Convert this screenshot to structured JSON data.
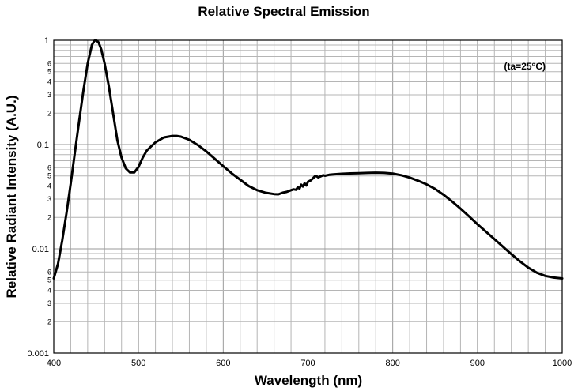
{
  "chart_data": {
    "type": "line",
    "title": "Relative Spectral Emission",
    "xlabel": "Wavelength (nm)",
    "ylabel": "Relative Radiant Intensity (A.U.)",
    "annotation": "(ta=25°C)",
    "yscale": "log",
    "xlim": [
      400,
      1000
    ],
    "ylim": [
      0.001,
      1
    ],
    "x_ticks": [
      400,
      500,
      600,
      700,
      800,
      900,
      1000
    ],
    "x_tick_labels": [
      "400",
      "500",
      "600",
      "700",
      "800",
      "900",
      "1000"
    ],
    "x_minor_ticks": [
      420,
      440,
      460,
      480,
      520,
      540,
      560,
      580,
      620,
      640,
      660,
      680,
      720,
      740,
      760,
      780,
      820,
      840,
      860,
      880,
      920,
      940,
      960,
      980
    ],
    "y_major_ticks": [
      0.001,
      0.01,
      0.1,
      1
    ],
    "y_major_labels": [
      "0.001",
      "0.01",
      "0.1",
      "1"
    ],
    "y_minor_decades": [
      0.001,
      0.01,
      0.1
    ],
    "y_minor_multipliers": [
      2,
      3,
      4,
      5,
      6,
      7,
      8,
      9
    ],
    "y_minor_labeled": [
      2,
      3,
      4,
      5,
      6
    ],
    "series": [
      {
        "name": "Relative Spectral Emission",
        "x": [
          400,
          405,
          410,
          415,
          420,
          425,
          430,
          435,
          440,
          445,
          448,
          450,
          453,
          456,
          460,
          465,
          470,
          475,
          480,
          485,
          490,
          495,
          500,
          505,
          510,
          520,
          530,
          540,
          545,
          550,
          560,
          570,
          580,
          590,
          600,
          610,
          620,
          630,
          640,
          650,
          660,
          665,
          670,
          675,
          680,
          683,
          686,
          688,
          690,
          692,
          694,
          696,
          698,
          700,
          703,
          706,
          708,
          710,
          712,
          715,
          718,
          720,
          725,
          730,
          740,
          750,
          760,
          770,
          780,
          790,
          800,
          810,
          820,
          830,
          840,
          850,
          860,
          870,
          880,
          890,
          900,
          910,
          920,
          930,
          940,
          950,
          960,
          970,
          980,
          990,
          1000
        ],
        "y": [
          0.0052,
          0.0072,
          0.012,
          0.022,
          0.042,
          0.085,
          0.17,
          0.33,
          0.6,
          0.9,
          0.99,
          1.0,
          0.95,
          0.82,
          0.6,
          0.36,
          0.2,
          0.11,
          0.075,
          0.059,
          0.054,
          0.054,
          0.061,
          0.075,
          0.088,
          0.105,
          0.117,
          0.121,
          0.121,
          0.119,
          0.111,
          0.099,
          0.086,
          0.073,
          0.062,
          0.053,
          0.046,
          0.04,
          0.0365,
          0.0345,
          0.0335,
          0.0333,
          0.0345,
          0.0352,
          0.0365,
          0.0372,
          0.0368,
          0.039,
          0.0378,
          0.0412,
          0.0395,
          0.0425,
          0.0405,
          0.044,
          0.0452,
          0.0475,
          0.0495,
          0.0498,
          0.0485,
          0.0496,
          0.0508,
          0.0502,
          0.0513,
          0.0518,
          0.0524,
          0.0529,
          0.0532,
          0.0535,
          0.0537,
          0.0535,
          0.0527,
          0.0508,
          0.0482,
          0.045,
          0.0415,
          0.0375,
          0.033,
          0.0285,
          0.0243,
          0.0205,
          0.0172,
          0.0146,
          0.0124,
          0.0105,
          0.0089,
          0.0076,
          0.0066,
          0.0059,
          0.0055,
          0.0053,
          0.0052
        ]
      }
    ],
    "grid": true,
    "legend": "none"
  }
}
